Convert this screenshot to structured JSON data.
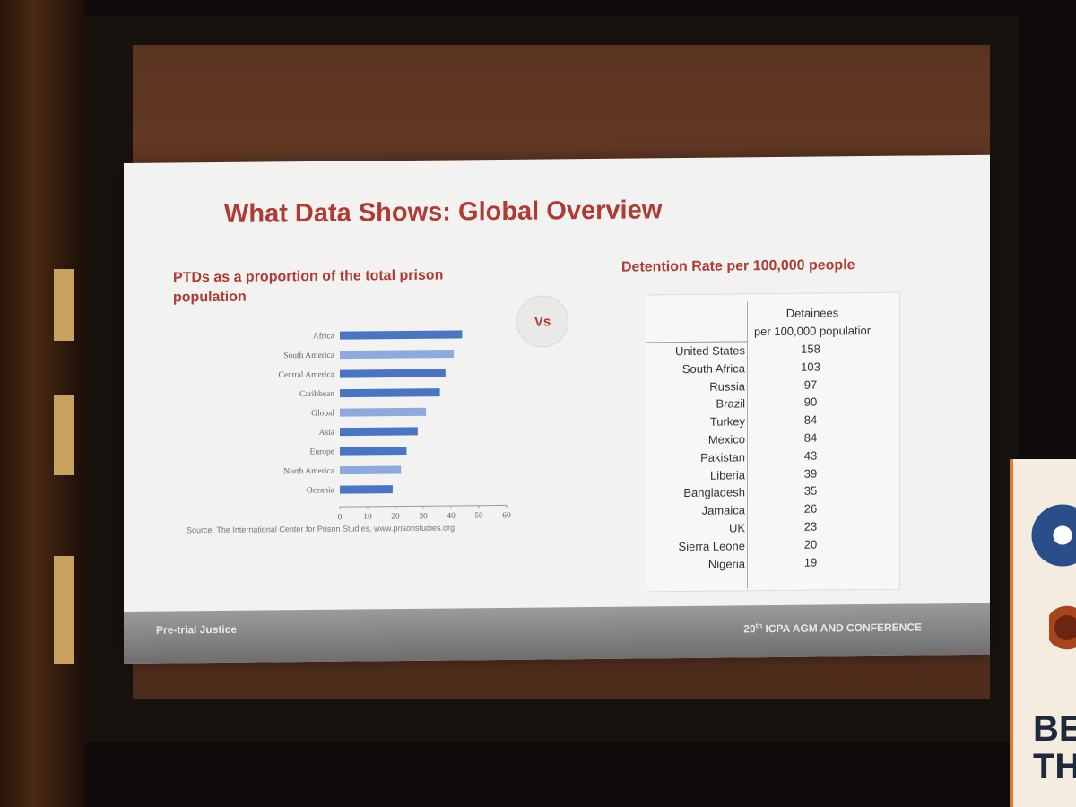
{
  "slide": {
    "title": "What Data Shows: Global Overview",
    "vs_label": "Vs",
    "footer_left": "Pre-trial Justice",
    "footer_right_prefix": "20",
    "footer_right_sup": "th",
    "footer_right_rest": " ICPA AGM AND CONFERENCE",
    "accent_color": "#b03a34"
  },
  "chart_data": {
    "type": "bar",
    "orientation": "horizontal",
    "title": "PTDs as a proportion of the total prison population",
    "categories": [
      "Africa",
      "South America",
      "Central America",
      "Caribbean",
      "Global",
      "Asia",
      "Europe",
      "North America",
      "Oceania"
    ],
    "values": [
      44,
      41,
      38,
      36,
      31,
      28,
      24,
      22,
      19
    ],
    "bar_colors": [
      "#4a74c4",
      "#8ea9dc",
      "#4a74c4",
      "#4a74c4",
      "#8ea9dc",
      "#4a74c4",
      "#4a74c4",
      "#8ea9dc",
      "#4a74c4"
    ],
    "xlim": [
      0,
      60
    ],
    "xticks": [
      0,
      10,
      20,
      30,
      40,
      50,
      60
    ],
    "source": "Source: The International Center for Prison Studies, www.prisonstudies.org"
  },
  "table": {
    "heading": "Detention Rate per 100,000 people",
    "col_head_line1": "Detainees",
    "col_head_line2": "per 100,000 populatior",
    "rows": [
      {
        "country": "United States",
        "value": "158"
      },
      {
        "country": "South Africa",
        "value": "103"
      },
      {
        "country": "Russia",
        "value": "97"
      },
      {
        "country": "Brazil",
        "value": "90"
      },
      {
        "country": "Turkey",
        "value": "84"
      },
      {
        "country": "Mexico",
        "value": "84"
      },
      {
        "country": "Pakistan",
        "value": "43"
      },
      {
        "country": "Liberia",
        "value": "39"
      },
      {
        "country": "Bangladesh",
        "value": "35"
      },
      {
        "country": "Jamaica",
        "value": "26"
      },
      {
        "country": "UK",
        "value": "23"
      },
      {
        "country": "Sierra Leone",
        "value": "20"
      },
      {
        "country": "Nigeria",
        "value": "19"
      }
    ]
  },
  "banner": {
    "line1": "BE",
    "line2": "TH"
  }
}
